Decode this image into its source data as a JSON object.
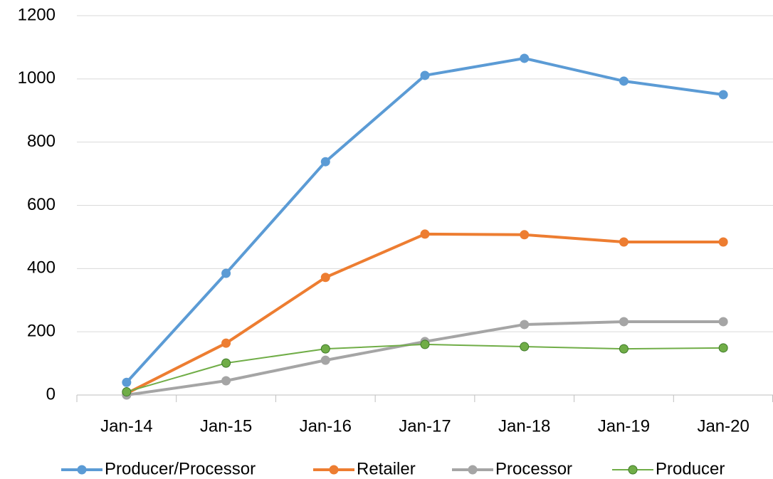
{
  "chart_data": {
    "type": "line",
    "categories": [
      "Jan-14",
      "Jan-15",
      "Jan-16",
      "Jan-17",
      "Jan-18",
      "Jan-19",
      "Jan-20"
    ],
    "series": [
      {
        "name": "Producer/Processor",
        "color": "#5b9bd5",
        "values": [
          40,
          385,
          738,
          1011,
          1065,
          993,
          950
        ]
      },
      {
        "name": "Retailer",
        "color": "#ed7d31",
        "values": [
          5,
          164,
          372,
          509,
          507,
          484,
          484
        ]
      },
      {
        "name": "Processor",
        "color": "#a5a5a5",
        "values": [
          0,
          45,
          110,
          169,
          223,
          232,
          232
        ]
      },
      {
        "name": "Producer",
        "color": "#70ad47",
        "values": [
          10,
          101,
          146,
          160,
          153,
          146,
          149
        ]
      }
    ],
    "ylim": [
      0,
      1200
    ],
    "yticks": [
      0,
      200,
      400,
      600,
      800,
      1000,
      1200
    ],
    "grid": true,
    "legend": "bottom"
  }
}
